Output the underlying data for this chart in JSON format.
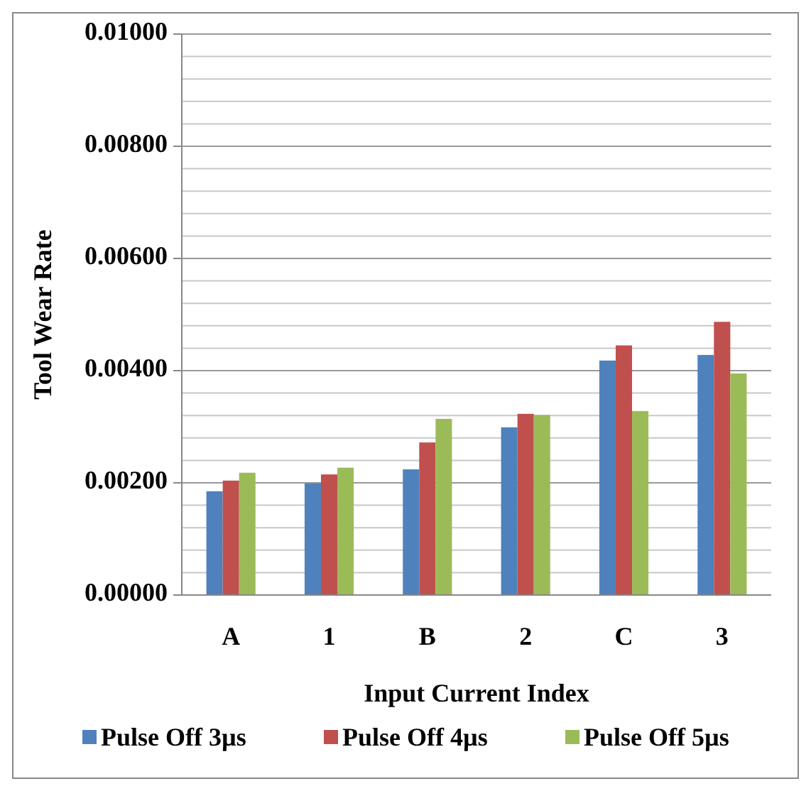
{
  "chart_data": {
    "type": "bar",
    "xlabel": "Input Current Index",
    "ylabel": "Tool Wear Rate",
    "categories": [
      "A",
      "1",
      "B",
      "2",
      "C",
      "3"
    ],
    "series": [
      {
        "name": "Pulse Off 3µs",
        "color": "#4f81bd",
        "values": [
          0.00185,
          0.00199,
          0.00224,
          0.00299,
          0.00418,
          0.00428
        ]
      },
      {
        "name": "Pulse Off 4µs",
        "color": "#c0504d",
        "values": [
          0.00204,
          0.00215,
          0.00272,
          0.00323,
          0.00445,
          0.00487
        ]
      },
      {
        "name": "Pulse Off 5µs",
        "color": "#9bbb59",
        "values": [
          0.00218,
          0.00227,
          0.00314,
          0.00321,
          0.00328,
          0.00395
        ]
      }
    ],
    "ylim": [
      0,
      0.01
    ],
    "yticks": [
      {
        "value": 0,
        "label": "0.00000"
      },
      {
        "value": 0.0004,
        "label": null
      },
      {
        "value": 0.0008,
        "label": null
      },
      {
        "value": 0.0012,
        "label": null
      },
      {
        "value": 0.0016,
        "label": null
      },
      {
        "value": 0.002,
        "label": "0.00200"
      },
      {
        "value": 0.0024,
        "label": null
      },
      {
        "value": 0.0028,
        "label": null
      },
      {
        "value": 0.0032,
        "label": null
      },
      {
        "value": 0.0036,
        "label": null
      },
      {
        "value": 0.004,
        "label": "0.00400"
      },
      {
        "value": 0.0044,
        "label": null
      },
      {
        "value": 0.0048,
        "label": null
      },
      {
        "value": 0.0052,
        "label": null
      },
      {
        "value": 0.0056,
        "label": null
      },
      {
        "value": 0.006,
        "label": "0.00600"
      },
      {
        "value": 0.0064,
        "label": null
      },
      {
        "value": 0.0068,
        "label": null
      },
      {
        "value": 0.0072,
        "label": null
      },
      {
        "value": 0.0076,
        "label": null
      },
      {
        "value": 0.008,
        "label": "0.00800"
      },
      {
        "value": 0.0084,
        "label": null
      },
      {
        "value": 0.0088,
        "label": null
      },
      {
        "value": 0.0092,
        "label": null
      },
      {
        "value": 0.0096,
        "label": null
      },
      {
        "value": 0.01,
        "label": "0.01000"
      }
    ],
    "grid": "y",
    "legend": "bottom"
  }
}
